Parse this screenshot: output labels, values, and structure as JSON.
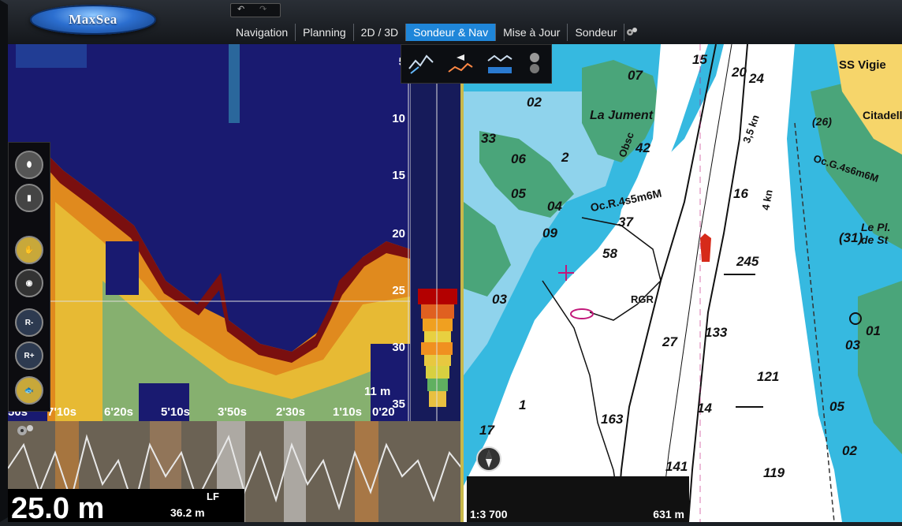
{
  "app": {
    "logo_text": "MaxSea"
  },
  "tabs": [
    {
      "label": "Navigation"
    },
    {
      "label": "Planning"
    },
    {
      "label": "2D / 3D"
    },
    {
      "label": "Sondeur & Nav",
      "active": true
    },
    {
      "label": "Mise à Jour"
    },
    {
      "label": "Sondeur"
    }
  ],
  "sonar": {
    "depth_marks": [
      "5",
      "10",
      "15",
      "20",
      "25",
      "30",
      "35"
    ],
    "range_label": "11 m",
    "time_marks": [
      "50s",
      "7'10s",
      "6'20s",
      "5'10s",
      "3'50s",
      "2'30s",
      "1'10s",
      "0'20"
    ],
    "current_depth": "25.0 m",
    "frequency": "LF",
    "secondary_depth": "36.2 m"
  },
  "toolbar_icons": [
    "transducer-icon",
    "cylinder-icon",
    "hand-icon",
    "target-icon",
    "range-minus-icon",
    "range-plus-icon",
    "fish-icon"
  ],
  "chart_texts": [
    {
      "text": "SS Vigie"
    },
    {
      "text": "La Jument"
    },
    {
      "text": "Oc.R.4s5m6M"
    },
    {
      "text": "Oc.G.4s6m6M"
    },
    {
      "text": "Citadelle"
    },
    {
      "text": "Le Pl. de St"
    },
    {
      "text": "RGR"
    },
    {
      "text": "Obsc"
    },
    {
      "text": "3,5 kn"
    },
    {
      "text": "4 kn"
    }
  ],
  "soundings": [
    "15",
    "20",
    "24",
    "07",
    "02",
    "42",
    "33",
    "06",
    "2",
    "05",
    "04",
    "03",
    "09",
    "16",
    "37",
    "58",
    "245",
    "27",
    "133",
    "121",
    "14",
    "163",
    "141",
    "119",
    "17",
    "1",
    "05",
    "02",
    "01",
    "03",
    "(31)",
    "(26)"
  ],
  "status": {
    "scale": "1:3 700",
    "distance": "631 m"
  },
  "colors": {
    "sonar_bg": "#191a70",
    "active_tab": "#1f86d9",
    "shallow_water": "#36b9e0",
    "land": "#4aa57a",
    "built_area": "#f6d56a"
  }
}
